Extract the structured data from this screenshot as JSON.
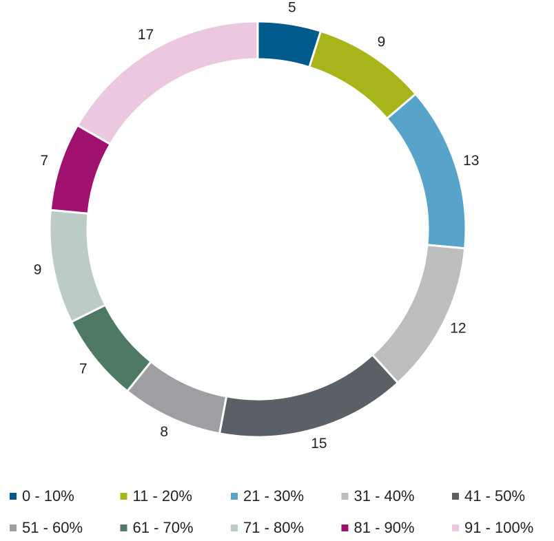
{
  "chart_data": {
    "type": "donut",
    "categories": [
      "0 - 10%",
      "11 - 20%",
      "21 - 30%",
      "31 - 40%",
      "41 - 50%",
      "51 - 60%",
      "61 - 70%",
      "71 - 80%",
      "81 - 90%",
      "91 - 100%"
    ],
    "values": [
      5,
      9,
      13,
      12,
      15,
      8,
      7,
      9,
      7,
      17
    ],
    "colors": [
      "#005a8c",
      "#a8b51a",
      "#58a3c9",
      "#bcbec0",
      "#5a6066",
      "#9d9fa2",
      "#4e7a63",
      "#bccbc5",
      "#a0106e",
      "#ecc8e0"
    ],
    "legend": "bottom"
  }
}
